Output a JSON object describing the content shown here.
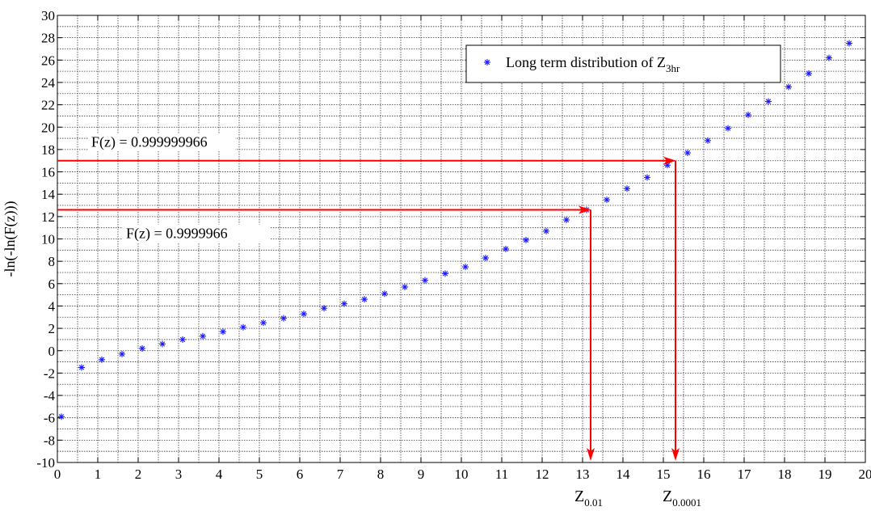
{
  "chart_data": {
    "type": "scatter",
    "title": "",
    "xlabel": "",
    "ylabel": "-ln(-ln(F(z)))",
    "xlim": [
      0,
      20
    ],
    "ylim": [
      -10,
      30
    ],
    "x_ticks": [
      0,
      1,
      2,
      3,
      4,
      5,
      6,
      7,
      8,
      9,
      10,
      11,
      12,
      13,
      14,
      15,
      16,
      17,
      18,
      19,
      20
    ],
    "y_ticks": [
      -10,
      -8,
      -6,
      -4,
      -2,
      0,
      2,
      4,
      6,
      8,
      10,
      12,
      14,
      16,
      18,
      20,
      22,
      24,
      26,
      28,
      30
    ],
    "grid": true,
    "legend_position": "top-right",
    "series": [
      {
        "name": "Long term distribution of Z",
        "name_subscript": "3hr",
        "color": "#1a1aff",
        "marker": "asterisk",
        "x": [
          0.1,
          0.6,
          1.1,
          1.6,
          2.1,
          2.6,
          3.1,
          3.6,
          4.1,
          4.6,
          5.1,
          5.6,
          6.1,
          6.6,
          7.1,
          7.6,
          8.1,
          8.6,
          9.1,
          9.6,
          10.1,
          10.6,
          11.1,
          11.6,
          12.1,
          12.6,
          13.1,
          13.6,
          14.1,
          14.6,
          15.1,
          15.6,
          16.1,
          16.6,
          17.1,
          17.6,
          18.1,
          18.6,
          19.1,
          19.6
        ],
        "y": [
          -5.9,
          -1.5,
          -0.8,
          -0.3,
          0.2,
          0.6,
          1.0,
          1.3,
          1.7,
          2.1,
          2.5,
          2.9,
          3.3,
          3.8,
          4.2,
          4.6,
          5.1,
          5.7,
          6.3,
          6.9,
          7.5,
          8.3,
          9.1,
          9.9,
          10.7,
          11.7,
          12.6,
          13.5,
          14.5,
          15.5,
          16.6,
          17.7,
          18.8,
          19.9,
          21.1,
          22.3,
          23.6,
          24.8,
          26.2,
          27.5
        ]
      }
    ],
    "annotations": [
      {
        "text": "F(z) = 0.999999966",
        "y": 17,
        "x_end": 15.3,
        "color": "#ff0000",
        "drop_label": "Z",
        "drop_label_subscript": "0.0001"
      },
      {
        "text": "F(z) = 0.9999966",
        "y": 12.6,
        "x_end": 13.2,
        "color": "#ff0000",
        "drop_label": "Z",
        "drop_label_subscript": "0.01"
      }
    ]
  }
}
